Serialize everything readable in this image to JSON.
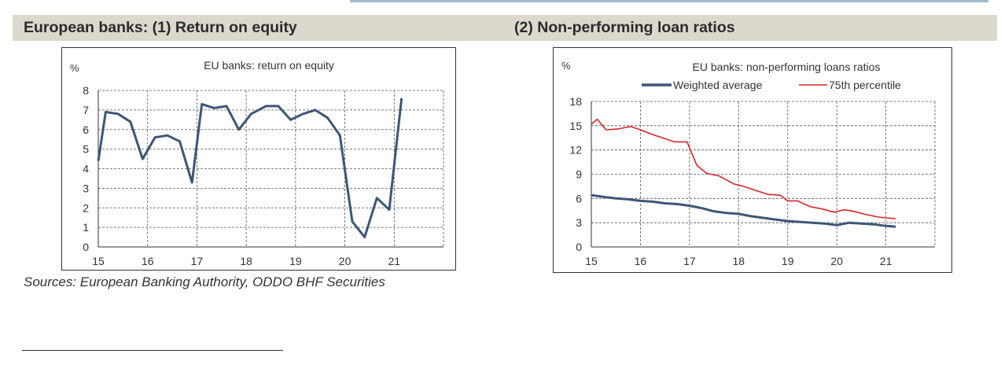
{
  "panels": {
    "left_title": "European banks: (1) Return on equity",
    "right_title": "(2) Non-performing loan ratios"
  },
  "source": "Sources: European Banking Authority, ODDO BHF Securities",
  "chart_data": [
    {
      "type": "line",
      "title": "EU banks: return on equity",
      "unit_label": "%",
      "xlabel": "",
      "ylabel": "",
      "xlim": [
        2015,
        2022
      ],
      "ylim": [
        0,
        8
      ],
      "y_ticks": [
        0,
        1,
        2,
        3,
        4,
        5,
        6,
        7,
        8
      ],
      "x_tick_labels": [
        "15",
        "16",
        "17",
        "18",
        "19",
        "20",
        "21"
      ],
      "grid": "horizontal-dashed-and-vertical-dashed",
      "series": [
        {
          "name": "",
          "color": "#3d5676",
          "x": [
            2015.0,
            2015.15,
            2015.4,
            2015.65,
            2015.9,
            2016.15,
            2016.4,
            2016.65,
            2016.9,
            2017.1,
            2017.35,
            2017.6,
            2017.85,
            2018.1,
            2018.4,
            2018.65,
            2018.9,
            2019.15,
            2019.4,
            2019.65,
            2019.9,
            2020.15,
            2020.4,
            2020.65,
            2020.9,
            2021.15
          ],
          "values": [
            4.4,
            6.9,
            6.8,
            6.4,
            4.5,
            5.6,
            5.7,
            5.4,
            3.3,
            7.3,
            7.1,
            7.2,
            6.0,
            6.8,
            7.2,
            7.2,
            6.5,
            6.8,
            7.0,
            6.6,
            5.7,
            1.3,
            0.5,
            2.5,
            1.9,
            7.6
          ]
        }
      ]
    },
    {
      "type": "line",
      "title": "EU banks: non-performing loans ratios",
      "unit_label": "%",
      "xlabel": "",
      "ylabel": "",
      "xlim": [
        2015,
        2022
      ],
      "ylim": [
        0,
        18
      ],
      "y_ticks": [
        0,
        3,
        6,
        9,
        12,
        15,
        18
      ],
      "x_tick_labels": [
        "15",
        "16",
        "17",
        "18",
        "19",
        "20",
        "21"
      ],
      "legend": "top",
      "grid": "horizontal-dashed-and-vertical-dashed",
      "series": [
        {
          "name": "Weighted average",
          "color": "#3d5676",
          "x": [
            2015.0,
            2015.25,
            2015.5,
            2015.75,
            2016.0,
            2016.25,
            2016.5,
            2016.75,
            2017.0,
            2017.25,
            2017.5,
            2017.75,
            2018.0,
            2018.25,
            2018.5,
            2018.75,
            2019.0,
            2019.25,
            2019.5,
            2019.75,
            2020.0,
            2020.25,
            2020.5,
            2020.75,
            2021.0,
            2021.2
          ],
          "values": [
            6.4,
            6.2,
            6.0,
            5.9,
            5.7,
            5.6,
            5.4,
            5.3,
            5.1,
            4.8,
            4.4,
            4.2,
            4.1,
            3.8,
            3.6,
            3.4,
            3.2,
            3.1,
            3.0,
            2.9,
            2.7,
            3.0,
            2.9,
            2.8,
            2.6,
            2.5
          ]
        },
        {
          "name": "75th percentile",
          "color": "#d7262b",
          "x": [
            2015.0,
            2015.12,
            2015.3,
            2015.55,
            2015.8,
            2016.0,
            2016.25,
            2016.5,
            2016.7,
            2016.95,
            2017.15,
            2017.35,
            2017.6,
            2017.9,
            2018.1,
            2018.35,
            2018.6,
            2018.85,
            2019.0,
            2019.2,
            2019.45,
            2019.7,
            2019.95,
            2020.15,
            2020.35,
            2020.6,
            2020.85,
            2021.0,
            2021.2
          ],
          "values": [
            15.2,
            15.8,
            14.5,
            14.6,
            14.9,
            14.5,
            13.9,
            13.4,
            13.0,
            13.0,
            10.1,
            9.1,
            8.8,
            7.8,
            7.5,
            7.0,
            6.5,
            6.4,
            5.7,
            5.7,
            5.0,
            4.7,
            4.3,
            4.6,
            4.4,
            4.0,
            3.7,
            3.6,
            3.5
          ]
        }
      ]
    }
  ]
}
